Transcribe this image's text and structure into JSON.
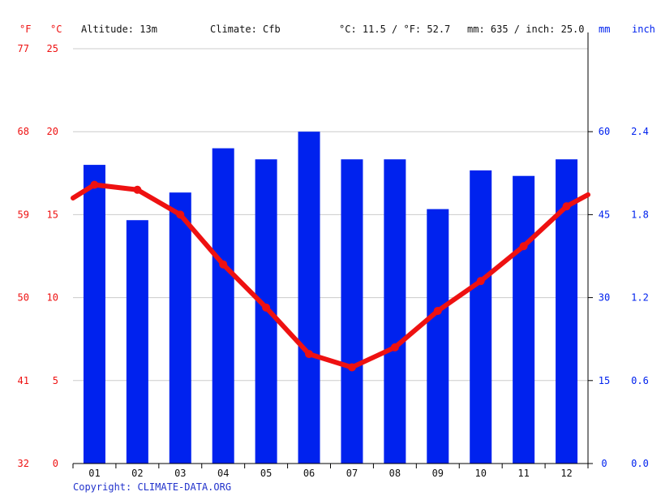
{
  "header": {
    "unit_f": "°F",
    "unit_c": "°C",
    "altitude": "Altitude: 13m",
    "climate": "Climate: Cfb",
    "temp_avg": "°C: 11.5 / °F: 52.7",
    "precip_total": "mm: 635 / inch: 25.0",
    "unit_mm": "mm",
    "unit_inch": "inch"
  },
  "footer": {
    "copyright": "Copyright: CLIMATE-DATA.ORG"
  },
  "colors": {
    "temperature": "#ee1111",
    "precipitation": "#0022ee",
    "grid": "#cccccc"
  },
  "chart_data": {
    "type": "bar",
    "categories": [
      "01",
      "02",
      "03",
      "04",
      "05",
      "06",
      "07",
      "08",
      "09",
      "10",
      "11",
      "12"
    ],
    "series": [
      {
        "values": [
          54,
          44,
          49,
          57,
          55,
          60,
          55,
          55,
          46,
          53,
          52,
          55
        ]
      },
      {
        "values": [
          16.8,
          16.5,
          15.0,
          12.0,
          9.4,
          6.6,
          5.8,
          7.0,
          9.2,
          11.0,
          13.1,
          15.5
        ]
      }
    ],
    "temp_left_c": 16.0,
    "temp_right_c": 16.2,
    "y_left_c": {
      "ticks": [
        0,
        5,
        10,
        15,
        20,
        25
      ],
      "range": [
        0,
        25
      ]
    },
    "y_left_f": {
      "ticks": [
        32,
        41,
        50,
        59,
        68,
        77
      ]
    },
    "y_right_mm": {
      "ticks": [
        0,
        15,
        30,
        45,
        60
      ],
      "range": [
        0,
        75
      ]
    },
    "y_right_inch": {
      "ticks": [
        "0.0",
        "0.6",
        "1.2",
        "1.8",
        "2.4"
      ]
    },
    "grid": true
  }
}
